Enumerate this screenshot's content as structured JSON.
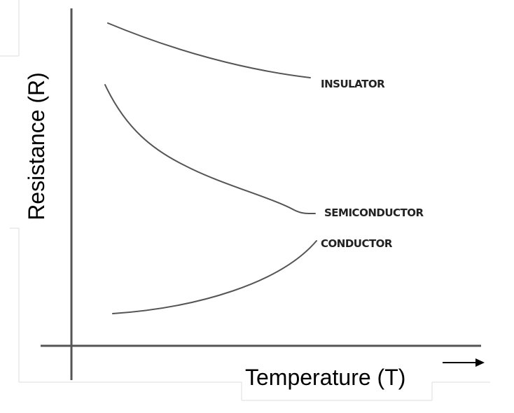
{
  "axes": {
    "x_label": "Temperature (T)",
    "y_label": "Resistance (R)"
  },
  "curves": [
    {
      "name": "insulator",
      "label": "INSULATOR"
    },
    {
      "name": "semiconductor",
      "label": "SEMICONDUCTOR"
    },
    {
      "name": "conductor",
      "label": "CONDUCTOR"
    }
  ],
  "colors": {
    "line": "#555555",
    "text": "#000000",
    "frame": "#dddddd",
    "background": "#ffffff"
  }
}
